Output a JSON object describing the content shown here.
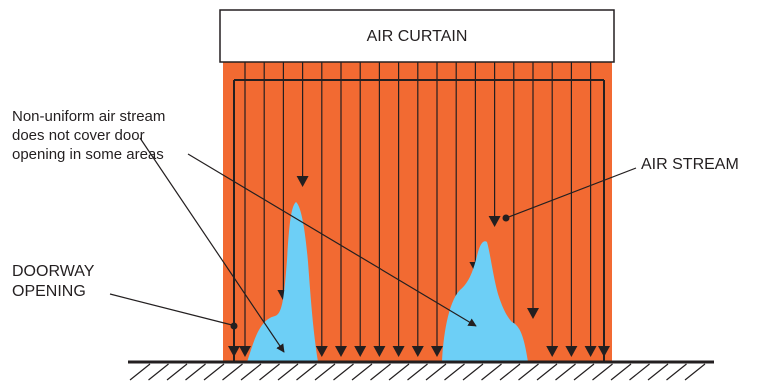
{
  "labels": {
    "air_curtain": "AIR CURTAIN",
    "non_uniform": [
      "Non-uniform air stream",
      "does not cover door",
      "opening in some areas"
    ],
    "air_stream": "AIR STREAM",
    "doorway": [
      "DOORWAY",
      "OPENING"
    ]
  },
  "colors": {
    "door": "#f26a32",
    "stream_line": "#231f20",
    "gap": "#6dcff6",
    "ground": "#231f20"
  }
}
